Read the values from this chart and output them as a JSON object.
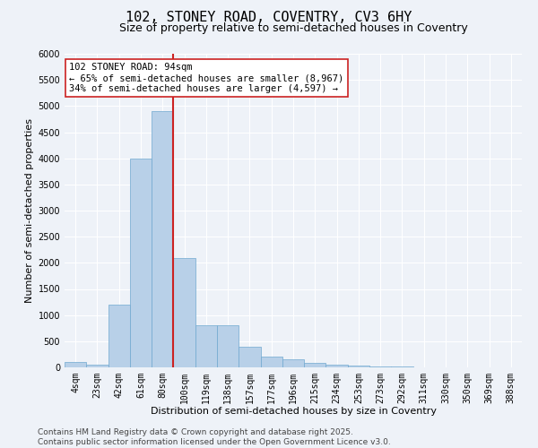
{
  "title": "102, STONEY ROAD, COVENTRY, CV3 6HY",
  "subtitle": "Size of property relative to semi-detached houses in Coventry",
  "xlabel": "Distribution of semi-detached houses by size in Coventry",
  "ylabel": "Number of semi-detached properties",
  "categories": [
    "4sqm",
    "23sqm",
    "42sqm",
    "61sqm",
    "80sqm",
    "100sqm",
    "119sqm",
    "138sqm",
    "157sqm",
    "177sqm",
    "196sqm",
    "215sqm",
    "234sqm",
    "253sqm",
    "273sqm",
    "292sqm",
    "311sqm",
    "330sqm",
    "350sqm",
    "369sqm",
    "388sqm"
  ],
  "values": [
    95,
    50,
    1200,
    4000,
    4900,
    2100,
    800,
    800,
    390,
    200,
    150,
    90,
    55,
    35,
    20,
    10,
    5,
    3,
    2,
    1,
    1
  ],
  "bar_color": "#b8d0e8",
  "bar_edge_color": "#6fa8d0",
  "highlight_color": "#cc2222",
  "vline_position": 4.5,
  "annotation_text": "102 STONEY ROAD: 94sqm\n← 65% of semi-detached houses are smaller (8,967)\n34% of semi-detached houses are larger (4,597) →",
  "annotation_box_color": "#ffffff",
  "annotation_box_edge": "#cc2222",
  "ylim": [
    0,
    6000
  ],
  "yticks": [
    0,
    500,
    1000,
    1500,
    2000,
    2500,
    3000,
    3500,
    4000,
    4500,
    5000,
    5500,
    6000
  ],
  "footer_line1": "Contains HM Land Registry data © Crown copyright and database right 2025.",
  "footer_line2": "Contains public sector information licensed under the Open Government Licence v3.0.",
  "bg_color": "#eef2f8",
  "plot_bg_color": "#eef2f8",
  "grid_color": "#ffffff",
  "title_fontsize": 11,
  "subtitle_fontsize": 9,
  "axis_label_fontsize": 8,
  "tick_fontsize": 7,
  "annotation_fontsize": 7.5,
  "footer_fontsize": 6.5
}
